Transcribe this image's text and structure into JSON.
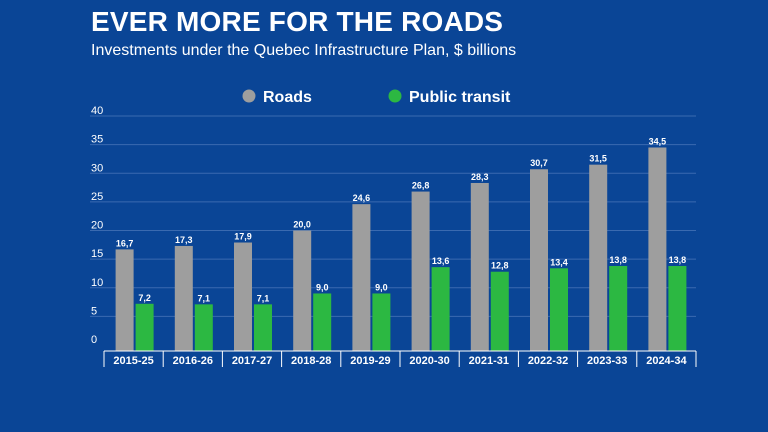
{
  "title": "EVER MORE FOR THE ROADS",
  "subtitle": "Investments under the Quebec Infrastructure Plan, $ billions",
  "colors": {
    "background": "#0a4596",
    "roads": "#9e9e9e",
    "transit": "#2cb842",
    "grid": "#3a6ab0"
  },
  "chart_data": {
    "type": "bar",
    "title": "EVER MORE FOR THE ROADS",
    "subtitle": "Investments under the Quebec Infrastructure Plan, $ billions",
    "xlabel": "",
    "ylabel": "",
    "ylim": [
      0,
      40
    ],
    "yticks": [
      "0",
      "5",
      "10",
      "15",
      "20",
      "25",
      "30",
      "35",
      "40"
    ],
    "grid": true,
    "legend_position": "top-center",
    "categories": [
      "2015-25",
      "2016-26",
      "2017-27",
      "2018-28",
      "2019-29",
      "2020-30",
      "2021-31",
      "2022-32",
      "2023-33",
      "2024-34"
    ],
    "series": [
      {
        "name": "Roads",
        "values": [
          16.7,
          17.3,
          17.9,
          20.0,
          24.6,
          26.8,
          28.3,
          30.7,
          31.5,
          34.5
        ],
        "labels": [
          "16,7",
          "17,3",
          "17,9",
          "20,0",
          "24,6",
          "26,8",
          "28,3",
          "30,7",
          "31,5",
          "34,5"
        ]
      },
      {
        "name": "Public transit",
        "values": [
          7.2,
          7.1,
          7.1,
          9.0,
          9.0,
          13.6,
          12.8,
          13.4,
          13.8,
          13.8
        ],
        "labels": [
          "7,2",
          "7,1",
          "7,1",
          "9,0",
          "9,0",
          "13,6",
          "12,8",
          "13,4",
          "13,8",
          "13,8"
        ]
      }
    ]
  }
}
